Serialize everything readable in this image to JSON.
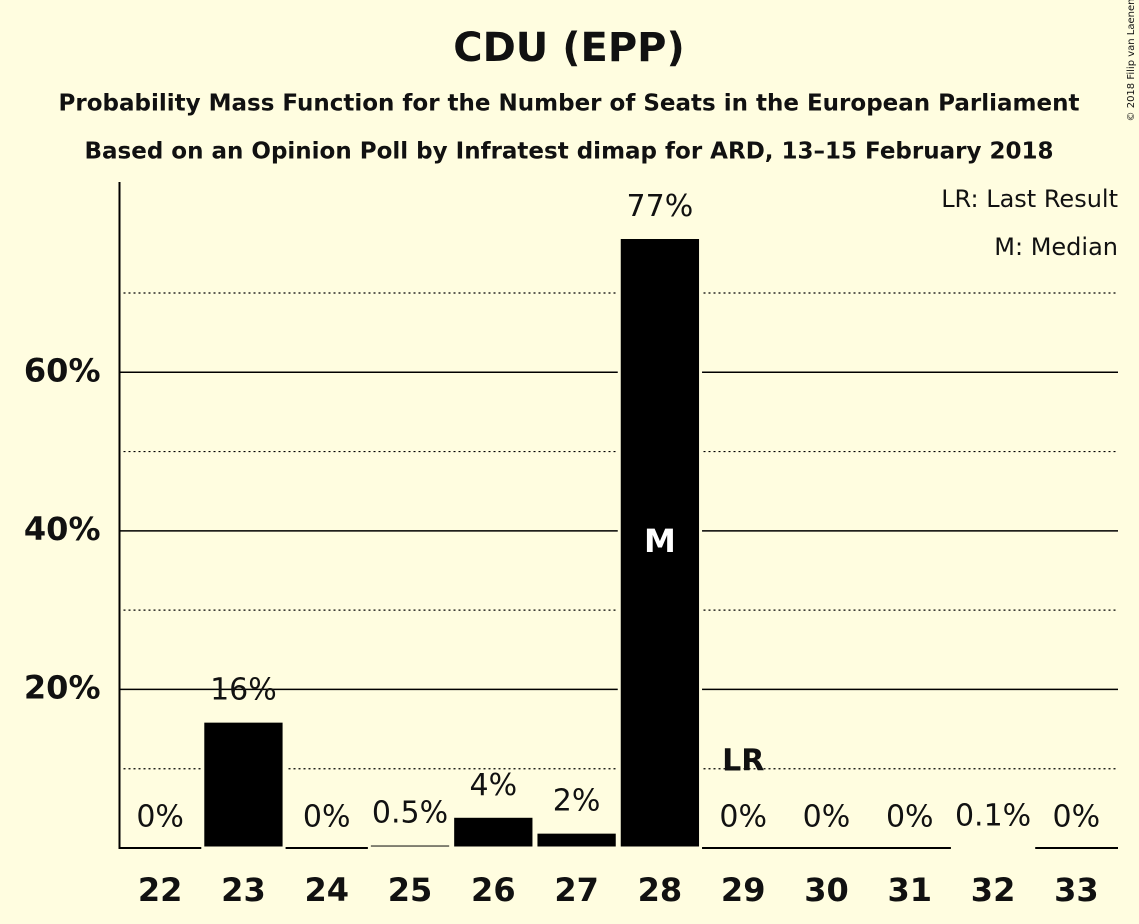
{
  "chart_data": {
    "type": "bar",
    "title": "CDU (EPP)",
    "subtitle": "Probability Mass Function for the Number of Seats in the European Parliament",
    "subtitle2": "Based on an Opinion Poll by Infratest dimap for ARD, 13–15 February 2018",
    "copyright": "© 2018 Filip van Laenen",
    "categories": [
      "22",
      "23",
      "24",
      "25",
      "26",
      "27",
      "28",
      "29",
      "30",
      "31",
      "32",
      "33"
    ],
    "values": [
      0,
      16,
      0,
      0.5,
      4,
      2,
      77,
      0,
      0,
      0,
      0.1,
      0
    ],
    "value_labels": [
      "0%",
      "16%",
      "0%",
      "0.5%",
      "4%",
      "2%",
      "77%",
      "0%",
      "0%",
      "0%",
      "0.1%",
      "0%"
    ],
    "color": "#000000",
    "ylim": [
      0,
      84
    ],
    "yticks": [
      {
        "value": 20,
        "label": "20%"
      },
      {
        "value": 40,
        "label": "40%"
      },
      {
        "value": 60,
        "label": "60%"
      }
    ],
    "minor_yticks": [
      10,
      30,
      50,
      70
    ],
    "grid": true,
    "median": {
      "label": "M",
      "category": "28"
    },
    "last_result": {
      "label": "LR",
      "category": "29"
    },
    "legend": [
      "LR: Last Result",
      "M: Median"
    ]
  }
}
